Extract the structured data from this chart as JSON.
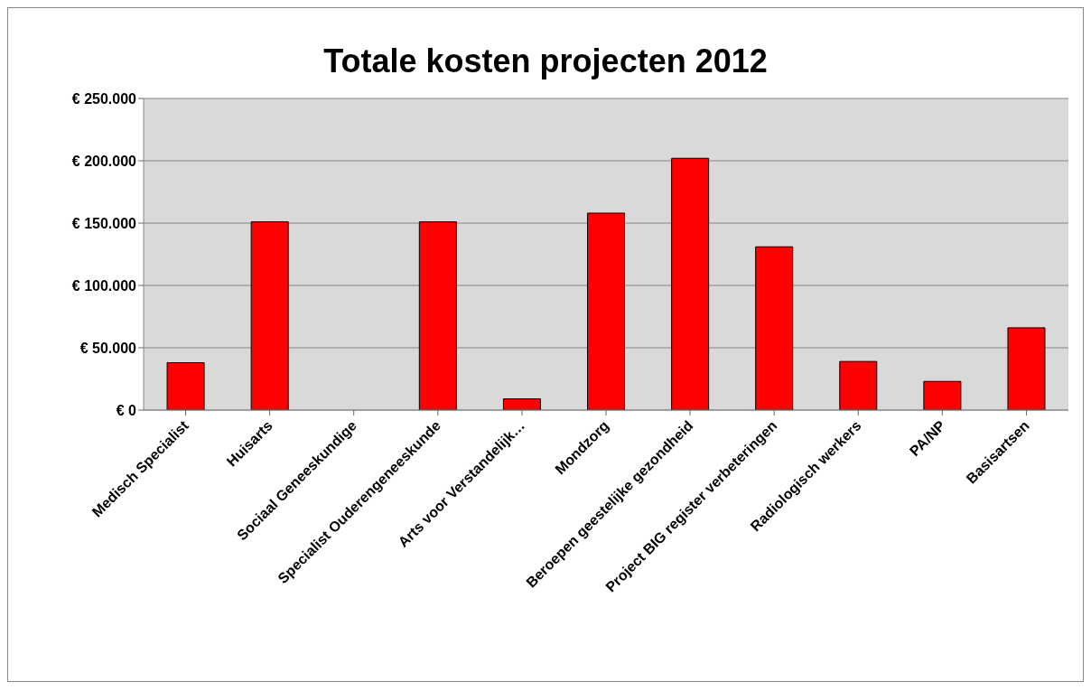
{
  "chart_data": {
    "type": "bar",
    "title": "Totale kosten projecten 2012",
    "categories": [
      "Medisch Specialist",
      "Huisarts",
      "Sociaal Geneeskundige",
      "Specialist Ouderengeneeskunde",
      "Arts voor Verstandelijk…",
      "Mondzorg",
      "Beroepen geestelijke gezondheid",
      "Project BIG register verbeteringen",
      "Radiologisch werkers",
      "PA/NP",
      "Basisartsen"
    ],
    "values": [
      38000,
      151000,
      0,
      151000,
      9000,
      158000,
      202000,
      131000,
      39000,
      23000,
      66000
    ],
    "color": "#ff0000",
    "ylim": [
      0,
      250000
    ],
    "yticks": [
      {
        "value": 0,
        "label": "€ 0"
      },
      {
        "value": 50000,
        "label": "€ 50.000"
      },
      {
        "value": 100000,
        "label": "€ 100.000"
      },
      {
        "value": 150000,
        "label": "€ 150.000"
      },
      {
        "value": 200000,
        "label": "€ 200.000"
      },
      {
        "value": 250000,
        "label": "€ 250.000"
      }
    ],
    "grid": "y",
    "legend": false
  }
}
